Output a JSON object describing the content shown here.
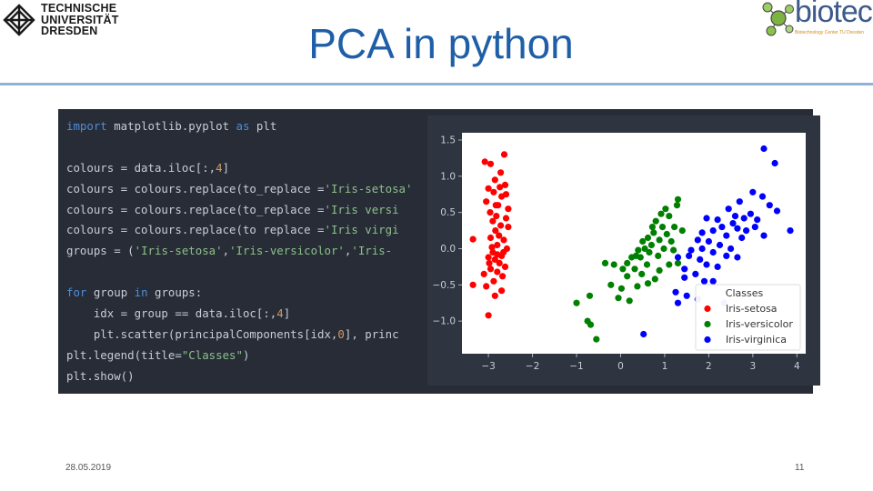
{
  "slide": {
    "title": "PCA in python",
    "date": "28.05.2019",
    "page_number": "11"
  },
  "logos": {
    "tu": {
      "lines": [
        "TECHNISCHE",
        "UNIVERSITÄT",
        "DRESDEN"
      ]
    },
    "biotec": {
      "word": "biotec",
      "subtitle": "Biotechnology Center TU Dresden"
    }
  },
  "code_lines": [
    [
      [
        "kw",
        "import"
      ],
      [
        "t",
        " matplotlib.pyplot "
      ],
      [
        "kw",
        "as"
      ],
      [
        "t",
        " plt"
      ]
    ],
    [],
    [
      [
        "t",
        "colours = data.iloc[:,"
      ],
      [
        "num",
        "4"
      ],
      [
        "t",
        "]"
      ]
    ],
    [
      [
        "t",
        "colours = colours.replace(to_replace ="
      ],
      [
        "str",
        "'Iris-setosa'"
      ]
    ],
    [
      [
        "t",
        "colours = colours.replace(to_replace ="
      ],
      [
        "str",
        "'Iris versi"
      ]
    ],
    [
      [
        "t",
        "colours = colours.replace(to replace ="
      ],
      [
        "str",
        "'Iris virgi"
      ]
    ],
    [
      [
        "t",
        "groups = ("
      ],
      [
        "str",
        "'Iris-setosa'"
      ],
      [
        "t",
        ","
      ],
      [
        "str",
        "'Iris-versicolor'"
      ],
      [
        "t",
        ","
      ],
      [
        "str",
        "'Iris-"
      ]
    ],
    [],
    [
      [
        "kw",
        "for"
      ],
      [
        "t",
        " group "
      ],
      [
        "kw",
        "in"
      ],
      [
        "t",
        " groups:"
      ]
    ],
    [
      [
        "t",
        "    idx = group == data.iloc[:,"
      ],
      [
        "num",
        "4"
      ],
      [
        "t",
        "]"
      ]
    ],
    [
      [
        "t",
        "    plt.scatter(principalComponents[idx,"
      ],
      [
        "num",
        "0"
      ],
      [
        "t",
        "], princ"
      ]
    ],
    [
      [
        "t",
        "plt.legend(title="
      ],
      [
        "str",
        "\"Classes\""
      ],
      [
        "t",
        ")"
      ]
    ],
    [
      [
        "t",
        "plt.show()"
      ]
    ]
  ],
  "chart_data": {
    "type": "scatter",
    "title": "",
    "xlabel": "",
    "ylabel": "",
    "xlim": [
      -3.6,
      4.2
    ],
    "ylim": [
      -1.45,
      1.6
    ],
    "x_ticks": [
      -3,
      -2,
      -1,
      0,
      1,
      2,
      3,
      4
    ],
    "y_ticks": [
      1.5,
      1.0,
      0.5,
      0.0,
      -0.5,
      -1.0
    ],
    "y_tick_labels": [
      "1.5",
      "1.0",
      "0.5",
      "0.0",
      "−0.5",
      "−1.0"
    ],
    "x_tick_labels": [
      "−3",
      "−2",
      "−1",
      "0",
      "1",
      "2",
      "3",
      "4"
    ],
    "grid": false,
    "legend": {
      "title": "Classes",
      "placement": "lower-right"
    },
    "series": [
      {
        "name": "Iris-setosa",
        "color": "#ff0000",
        "points": [
          [
            -2.64,
            1.3
          ],
          [
            -2.95,
            1.17
          ],
          [
            -3.08,
            1.2
          ],
          [
            -2.72,
            1.05
          ],
          [
            -2.85,
            0.95
          ],
          [
            -3.0,
            0.83
          ],
          [
            -2.62,
            0.88
          ],
          [
            -2.88,
            0.78
          ],
          [
            -2.7,
            0.72
          ],
          [
            -3.05,
            0.65
          ],
          [
            -2.78,
            0.6
          ],
          [
            -2.55,
            0.55
          ],
          [
            -2.96,
            0.5
          ],
          [
            -2.82,
            0.45
          ],
          [
            -2.6,
            0.42
          ],
          [
            -2.9,
            0.38
          ],
          [
            -2.72,
            0.32
          ],
          [
            -2.55,
            0.3
          ],
          [
            -2.84,
            0.25
          ],
          [
            -3.35,
            0.13
          ],
          [
            -2.95,
            0.15
          ],
          [
            -2.65,
            0.12
          ],
          [
            -2.8,
            0.05
          ],
          [
            -2.58,
            0.0
          ],
          [
            -2.9,
            -0.05
          ],
          [
            -2.7,
            -0.1
          ],
          [
            -2.85,
            -0.15
          ],
          [
            -3.0,
            -0.12
          ],
          [
            -2.75,
            -0.2
          ],
          [
            -2.62,
            -0.25
          ],
          [
            -2.95,
            -0.28
          ],
          [
            -2.8,
            -0.32
          ],
          [
            -2.68,
            -0.38
          ],
          [
            -3.1,
            -0.35
          ],
          [
            -2.88,
            -0.45
          ],
          [
            -3.35,
            -0.5
          ],
          [
            -3.05,
            -0.52
          ],
          [
            -2.7,
            -0.58
          ],
          [
            -2.85,
            -0.65
          ],
          [
            -3.0,
            -0.92
          ],
          [
            -2.76,
            0.18
          ],
          [
            -2.66,
            -0.05
          ],
          [
            -2.92,
            0.02
          ],
          [
            -2.83,
            0.6
          ],
          [
            -2.74,
            0.85
          ],
          [
            -2.98,
            -0.2
          ],
          [
            -2.6,
            0.75
          ],
          [
            -2.8,
            -0.08
          ]
        ]
      },
      {
        "name": "Iris-versicolor",
        "color": "#008000",
        "points": [
          [
            1.3,
            0.68
          ],
          [
            1.28,
            0.6
          ],
          [
            0.92,
            0.48
          ],
          [
            1.1,
            0.45
          ],
          [
            1.22,
            0.3
          ],
          [
            0.8,
            0.38
          ],
          [
            0.95,
            0.3
          ],
          [
            0.75,
            0.22
          ],
          [
            1.05,
            0.2
          ],
          [
            0.62,
            0.15
          ],
          [
            0.88,
            0.12
          ],
          [
            1.15,
            0.1
          ],
          [
            0.7,
            0.05
          ],
          [
            0.55,
            0.0
          ],
          [
            0.98,
            0.0
          ],
          [
            0.4,
            -0.02
          ],
          [
            0.65,
            -0.05
          ],
          [
            1.2,
            -0.02
          ],
          [
            0.25,
            -0.12
          ],
          [
            0.45,
            -0.12
          ],
          [
            0.85,
            -0.1
          ],
          [
            -0.35,
            -0.2
          ],
          [
            -0.15,
            -0.22
          ],
          [
            0.05,
            -0.28
          ],
          [
            0.32,
            -0.28
          ],
          [
            0.6,
            -0.22
          ],
          [
            0.88,
            -0.3
          ],
          [
            1.1,
            -0.22
          ],
          [
            1.3,
            -0.2
          ],
          [
            0.15,
            -0.38
          ],
          [
            0.48,
            -0.35
          ],
          [
            0.78,
            -0.42
          ],
          [
            -0.22,
            -0.5
          ],
          [
            0.02,
            -0.55
          ],
          [
            0.38,
            -0.52
          ],
          [
            0.62,
            -0.48
          ],
          [
            -0.05,
            -0.68
          ],
          [
            0.2,
            -0.72
          ],
          [
            -0.7,
            -0.65
          ],
          [
            -1.0,
            -0.75
          ],
          [
            -0.75,
            -1.0
          ],
          [
            -0.68,
            -1.05
          ],
          [
            -0.55,
            -1.25
          ],
          [
            0.35,
            -0.1
          ],
          [
            0.72,
            0.3
          ],
          [
            1.02,
            0.55
          ],
          [
            0.5,
            0.1
          ],
          [
            0.15,
            -0.2
          ],
          [
            1.4,
            0.25
          ]
        ]
      },
      {
        "name": "Iris-virginica",
        "color": "#0000ff",
        "points": [
          [
            3.25,
            1.38
          ],
          [
            3.5,
            1.18
          ],
          [
            3.0,
            0.78
          ],
          [
            3.22,
            0.72
          ],
          [
            3.38,
            0.6
          ],
          [
            3.55,
            0.52
          ],
          [
            2.7,
            0.65
          ],
          [
            2.45,
            0.55
          ],
          [
            2.8,
            0.42
          ],
          [
            2.95,
            0.48
          ],
          [
            3.1,
            0.4
          ],
          [
            1.95,
            0.42
          ],
          [
            2.2,
            0.4
          ],
          [
            2.55,
            0.35
          ],
          [
            2.3,
            0.3
          ],
          [
            2.65,
            0.28
          ],
          [
            2.85,
            0.25
          ],
          [
            3.05,
            0.3
          ],
          [
            3.25,
            0.18
          ],
          [
            2.1,
            0.25
          ],
          [
            1.85,
            0.22
          ],
          [
            2.4,
            0.18
          ],
          [
            2.75,
            0.15
          ],
          [
            1.75,
            0.12
          ],
          [
            2.0,
            0.1
          ],
          [
            2.25,
            0.05
          ],
          [
            2.5,
            0.0
          ],
          [
            3.85,
            0.25
          ],
          [
            1.6,
            -0.02
          ],
          [
            1.85,
            0.0
          ],
          [
            2.1,
            -0.05
          ],
          [
            2.4,
            -0.1
          ],
          [
            2.65,
            -0.12
          ],
          [
            1.3,
            -0.12
          ],
          [
            1.55,
            -0.1
          ],
          [
            1.8,
            -0.15
          ],
          [
            1.95,
            -0.22
          ],
          [
            2.2,
            -0.25
          ],
          [
            1.45,
            -0.28
          ],
          [
            1.7,
            -0.35
          ],
          [
            1.9,
            -0.45
          ],
          [
            2.1,
            -0.45
          ],
          [
            1.25,
            -0.6
          ],
          [
            1.5,
            -0.65
          ],
          [
            1.75,
            -0.7
          ],
          [
            1.3,
            -0.75
          ],
          [
            2.35,
            -0.75
          ],
          [
            0.52,
            -1.18
          ],
          [
            1.45,
            -0.4
          ],
          [
            2.6,
            0.45
          ]
        ]
      }
    ]
  }
}
